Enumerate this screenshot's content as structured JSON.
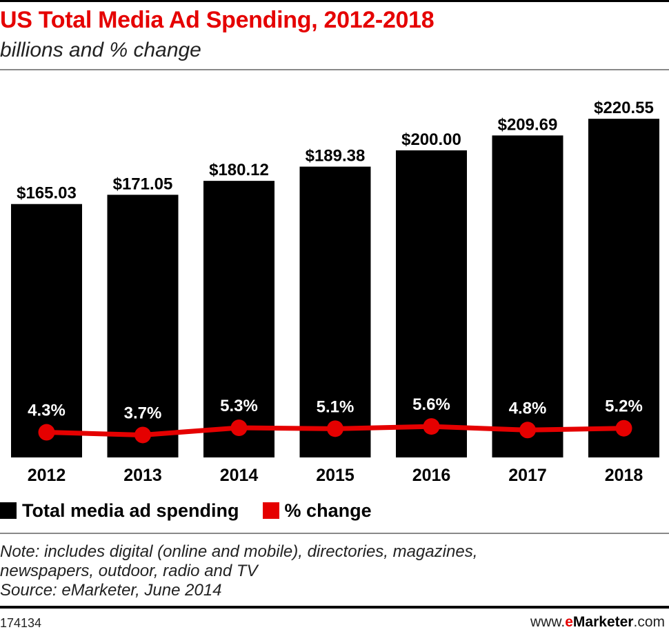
{
  "header": {
    "title": "US Total Media Ad Spending, 2012-2018",
    "subtitle": "billions and % change"
  },
  "chart_data": {
    "type": "bar",
    "title": "US Total Media Ad Spending, 2012-2018",
    "subtitle": "billions and % change",
    "categories": [
      "2012",
      "2013",
      "2014",
      "2015",
      "2016",
      "2017",
      "2018"
    ],
    "series": [
      {
        "name": "Total media ad spending",
        "type": "bar",
        "values": [
          165.03,
          171.05,
          180.12,
          189.38,
          200.0,
          209.69,
          220.55
        ],
        "labels": [
          "$165.03",
          "$171.05",
          "$180.12",
          "$189.38",
          "$200.00",
          "$209.69",
          "$220.55"
        ],
        "color": "#000000"
      },
      {
        "name": "% change",
        "type": "line",
        "values": [
          4.3,
          3.7,
          5.3,
          5.1,
          5.6,
          4.8,
          5.2
        ],
        "labels": [
          "4.3%",
          "3.7%",
          "5.3%",
          "5.1%",
          "5.6%",
          "4.8%",
          "5.2%"
        ],
        "color": "#e50000"
      }
    ],
    "ylim": [
      0,
      235
    ],
    "xlabel": "",
    "ylabel": "",
    "grid": false,
    "legend": "bottom-left"
  },
  "legend": {
    "items": [
      {
        "label": "Total media ad spending",
        "color": "#000000"
      },
      {
        "label": "% change",
        "color": "#e50000"
      }
    ]
  },
  "notes": {
    "line1": "Note: includes digital (online and mobile), directories, magazines,",
    "line2": "newspapers, outdoor, radio and TV",
    "line3": "Source: eMarketer, June 2014"
  },
  "footer": {
    "chart_id": "174134",
    "brand_prefix": "www.",
    "brand_e": "e",
    "brand_name": "Marketer",
    "brand_suffix": ".com"
  }
}
